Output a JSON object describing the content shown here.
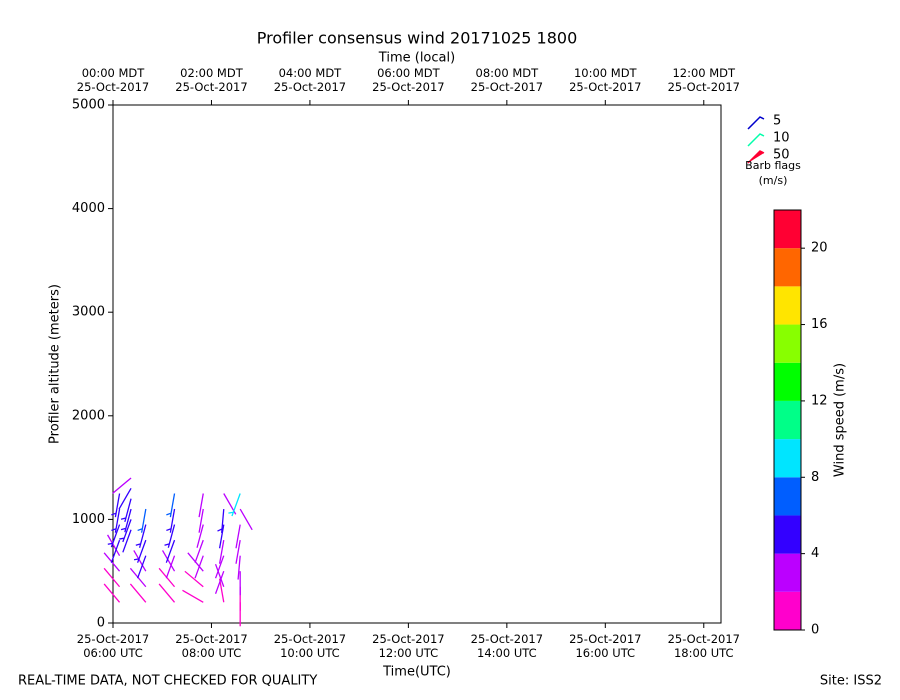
{
  "chart_data": {
    "type": "barbs",
    "title": "Profiler consensus wind 20171025 1800",
    "xlabel": "Time(UTC)",
    "x2label": "Time (local)",
    "ylabel": "Profiler altitude (meters)",
    "xlim": [
      "2017-10-25T06:00Z",
      "2017-10-25T18:21Z"
    ],
    "xticks": [
      {
        "value": "2017-10-25T06:00Z",
        "label": "25-Oct-2017\n06:00 UTC"
      },
      {
        "value": "2017-10-25T08:00Z",
        "label": "25-Oct-2017\n08:00 UTC"
      },
      {
        "value": "2017-10-25T10:00Z",
        "label": "25-Oct-2017\n10:00 UTC"
      },
      {
        "value": "2017-10-25T12:00Z",
        "label": "25-Oct-2017\n12:00 UTC"
      },
      {
        "value": "2017-10-25T14:00Z",
        "label": "25-Oct-2017\n14:00 UTC"
      },
      {
        "value": "2017-10-25T16:00Z",
        "label": "25-Oct-2017\n16:00 UTC"
      },
      {
        "value": "2017-10-25T18:00Z",
        "label": "25-Oct-2017\n18:00 UTC"
      }
    ],
    "x2ticks": [
      {
        "value": "2017-10-25T00:00-06:00",
        "label": "00:00 MDT\n25-Oct-2017"
      },
      {
        "value": "2017-10-25T02:00-06:00",
        "label": "02:00 MDT\n25-Oct-2017"
      },
      {
        "value": "2017-10-25T04:00-06:00",
        "label": "04:00 MDT\n25-Oct-2017"
      },
      {
        "value": "2017-10-25T06:00-06:00",
        "label": "06:00 MDT\n25-Oct-2017"
      },
      {
        "value": "2017-10-25T08:00-06:00",
        "label": "08:00 MDT\n25-Oct-2017"
      },
      {
        "value": "2017-10-25T10:00-06:00",
        "label": "10:00 MDT\n25-Oct-2017"
      },
      {
        "value": "2017-10-25T12:00-06:00",
        "label": "12:00 MDT\n25-Oct-2017"
      }
    ],
    "ylim": [
      0,
      5000
    ],
    "yticks": [
      0,
      1000,
      2000,
      3000,
      4000,
      5000
    ],
    "profiles": [
      {
        "x": "2017-10-25T06:08Z",
        "altitude": [
          200,
          350,
          500,
          650,
          800,
          950,
          1100,
          1250
        ],
        "speed": [
          1.5,
          1.5,
          2.5,
          3,
          4.5,
          5,
          5,
          5.5
        ],
        "direction": [
          320,
          320,
          320,
          330,
          200,
          200,
          190,
          190
        ]
      },
      {
        "x": "2017-10-25T06:22Z",
        "altitude": [
          900,
          1000,
          1100,
          1200,
          1300,
          1400
        ],
        "speed": [
          4.5,
          5,
          5,
          5.5,
          4.5,
          3.5
        ],
        "direction": [
          200,
          200,
          195,
          195,
          210,
          230
        ]
      },
      {
        "x": "2017-10-25T06:40Z",
        "altitude": [
          200,
          350,
          500,
          650,
          800,
          950,
          1100
        ],
        "speed": [
          1.5,
          2,
          3,
          4.5,
          5,
          5.5,
          6
        ],
        "direction": [
          320,
          320,
          330,
          200,
          200,
          195,
          190
        ]
      },
      {
        "x": "2017-10-25T07:15Z",
        "altitude": [
          200,
          350,
          500,
          650,
          800,
          950,
          1100,
          1250
        ],
        "speed": [
          1.5,
          1.5,
          2.5,
          3,
          4.5,
          5,
          5.5,
          6
        ],
        "direction": [
          320,
          320,
          330,
          200,
          200,
          195,
          190,
          190
        ]
      },
      {
        "x": "2017-10-25T07:50Z",
        "altitude": [
          200,
          350,
          500,
          650,
          800,
          950,
          1100,
          1250
        ],
        "speed": [
          1.5,
          1.5,
          2,
          2.5,
          3,
          3,
          3.5,
          3.5
        ],
        "direction": [
          300,
          310,
          320,
          200,
          200,
          195,
          190,
          190
        ]
      },
      {
        "x": "2017-10-25T08:15Z",
        "altitude": [
          200,
          350,
          500,
          650,
          800,
          950,
          1100,
          1250
        ],
        "speed": [
          1.5,
          2,
          2.5,
          3,
          3.5,
          4,
          5,
          3.5
        ],
        "direction": [
          350,
          340,
          200,
          200,
          190,
          190,
          185,
          150
        ]
      },
      {
        "x": "2017-10-25T08:35Z",
        "altitude": [
          200,
          350,
          500,
          650,
          800,
          950,
          1100,
          1250
        ],
        "speed": [
          1.5,
          1.5,
          2,
          2,
          3,
          3.5,
          3,
          8.5
        ],
        "direction": [
          180,
          180,
          180,
          185,
          190,
          190,
          150,
          200
        ]
      }
    ],
    "colorbar": {
      "label": "Wind speed (m/s)",
      "clim": [
        0,
        22
      ],
      "ticks": [
        0,
        4,
        8,
        12,
        16,
        20
      ],
      "colors": [
        "#ff00cc",
        "#bb00ff",
        "#3300ff",
        "#005eff",
        "#00e5ff",
        "#00ff88",
        "#00ff00",
        "#88ff00",
        "#ffe500",
        "#ff6600",
        "#ff0033"
      ]
    },
    "legend": {
      "title": "Barb flags\n(m/s)",
      "items": [
        {
          "label": "5",
          "color": "#0000cc"
        },
        {
          "label": "10",
          "color": "#00ffaa"
        },
        {
          "label": "50",
          "color": "#ff0033"
        }
      ]
    },
    "footer_left": "REAL-TIME DATA, NOT CHECKED FOR QUALITY",
    "footer_right": "Site: ISS2"
  }
}
